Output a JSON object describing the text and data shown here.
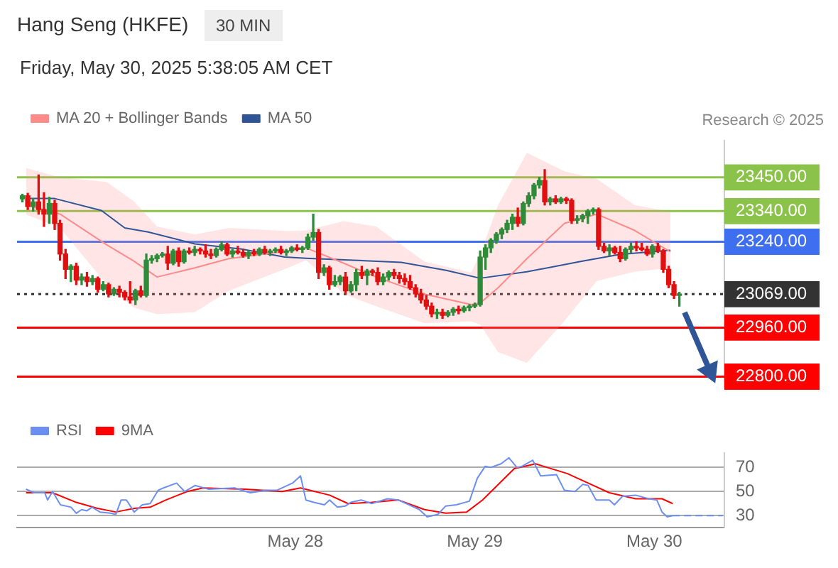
{
  "chart_data": [
    {
      "type": "candlestick",
      "title": "Hang Seng (HKFE)",
      "subtitle": "Friday, May 30, 2025 5:38:05 AM CET",
      "annotations": [
        "30 MIN",
        "Research © 2025"
      ],
      "x": [
        "2025-05-26T11:31",
        "2025-05-26T12:14",
        "2025-05-26T12:57",
        "2025-05-26T13:41",
        "2025-05-26T14:24",
        "2025-05-26T15:07",
        "2025-05-26T15:50",
        "2025-05-26T16:33",
        "2025-05-26T17:17",
        "2025-05-26T18:00",
        "2025-05-26T18:43",
        "2025-05-26T19:26",
        "2025-05-26T20:09",
        "2025-05-26T20:53",
        "2025-05-26T21:36",
        "2025-05-26T22:19",
        "2025-05-26T23:02",
        "2025-05-26T23:45",
        "2025-05-27T00:29",
        "2025-05-27T01:12",
        "2025-05-27T01:55",
        "2025-05-27T02:38",
        "2025-05-27T03:21",
        "2025-05-27T04:05",
        "2025-05-27T04:48",
        "2025-05-27T05:31",
        "2025-05-27T06:14",
        "2025-05-27T06:57",
        "2025-05-27T07:41",
        "2025-05-27T08:24",
        "2025-05-27T09:07",
        "2025-05-27T09:50",
        "2025-05-27T10:33",
        "2025-05-27T11:17",
        "2025-05-27T12:00",
        "2025-05-27T12:43",
        "2025-05-27T13:26",
        "2025-05-27T14:09",
        "2025-05-27T14:53",
        "2025-05-27T15:36",
        "2025-05-27T16:19",
        "2025-05-27T17:02",
        "2025-05-27T17:45",
        "2025-05-27T18:29",
        "2025-05-27T19:12",
        "2025-05-27T19:55",
        "2025-05-27T20:38",
        "2025-05-27T21:21",
        "2025-05-27T22:05",
        "2025-05-27T22:48",
        "2025-05-27T23:31",
        "2025-05-28T00:14",
        "2025-05-28T00:57",
        "2025-05-28T01:41",
        "2025-05-28T02:24",
        "2025-05-28T03:07",
        "2025-05-28T03:50",
        "2025-05-28T04:33",
        "2025-05-28T05:17",
        "2025-05-28T06:00",
        "2025-05-28T06:43",
        "2025-05-28T07:26",
        "2025-05-28T08:09",
        "2025-05-28T08:53",
        "2025-05-28T09:36",
        "2025-05-28T10:19",
        "2025-05-28T11:02",
        "2025-05-28T11:45",
        "2025-05-28T12:29",
        "2025-05-28T13:12",
        "2025-05-28T13:55",
        "2025-05-28T14:38",
        "2025-05-28T15:21",
        "2025-05-28T16:05",
        "2025-05-28T16:48",
        "2025-05-28T17:31",
        "2025-05-28T18:14",
        "2025-05-28T18:57",
        "2025-05-28T19:41",
        "2025-05-28T20:24",
        "2025-05-28T21:07",
        "2025-05-28T21:50",
        "2025-05-28T22:33",
        "2025-05-28T23:17",
        "2025-05-29T00:00",
        "2025-05-29T00:43",
        "2025-05-29T01:26",
        "2025-05-29T02:09",
        "2025-05-29T02:53",
        "2025-05-29T03:36",
        "2025-05-29T04:19",
        "2025-05-29T05:02",
        "2025-05-29T05:45",
        "2025-05-29T06:29",
        "2025-05-29T07:12",
        "2025-05-29T07:55",
        "2025-05-29T08:38",
        "2025-05-29T09:21",
        "2025-05-29T10:05",
        "2025-05-29T10:48",
        "2025-05-29T11:31",
        "2025-05-29T12:14",
        "2025-05-29T12:57",
        "2025-05-29T13:41",
        "2025-05-29T14:24",
        "2025-05-29T15:07",
        "2025-05-29T15:50",
        "2025-05-29T16:33",
        "2025-05-29T17:17",
        "2025-05-29T18:00",
        "2025-05-29T18:43",
        "2025-05-29T19:26",
        "2025-05-29T20:09",
        "2025-05-29T20:53",
        "2025-05-29T21:36",
        "2025-05-29T22:19",
        "2025-05-29T23:02",
        "2025-05-29T23:45",
        "2025-05-30T00:29",
        "2025-05-30T01:12",
        "2025-05-30T01:55",
        "2025-05-30T02:38",
        "2025-05-30T03:21"
      ],
      "ohlc": [
        [
          23380,
          23395,
          23370,
          23390
        ],
        [
          23390,
          23398,
          23345,
          23355
        ],
        [
          23355,
          23380,
          23340,
          23370
        ],
        [
          23370,
          23458,
          23330,
          23345
        ],
        [
          23345,
          23400,
          23290,
          23330
        ],
        [
          23330,
          23385,
          23300,
          23365
        ],
        [
          23365,
          23375,
          23280,
          23300
        ],
        [
          23300,
          23310,
          23180,
          23200
        ],
        [
          23200,
          23215,
          23120,
          23150
        ],
        [
          23150,
          23165,
          23110,
          23160
        ],
        [
          23160,
          23170,
          23100,
          23115
        ],
        [
          23115,
          23135,
          23100,
          23125
        ],
        [
          23125,
          23140,
          23095,
          23110
        ],
        [
          23110,
          23130,
          23100,
          23120
        ],
        [
          23120,
          23125,
          23075,
          23085
        ],
        [
          23085,
          23110,
          23080,
          23100
        ],
        [
          23100,
          23105,
          23060,
          23070
        ],
        [
          23070,
          23090,
          23065,
          23085
        ],
        [
          23085,
          23095,
          23060,
          23075
        ],
        [
          23075,
          23080,
          23050,
          23060
        ],
        [
          23060,
          23110,
          23040,
          23050
        ],
        [
          23050,
          23085,
          23035,
          23080
        ],
        [
          23080,
          23095,
          23060,
          23065
        ],
        [
          23065,
          23200,
          23060,
          23180
        ],
        [
          23180,
          23195,
          23170,
          23185
        ],
        [
          23185,
          23200,
          23175,
          23195
        ],
        [
          23195,
          23205,
          23190,
          23200
        ],
        [
          23200,
          23225,
          23150,
          23170
        ],
        [
          23170,
          23215,
          23165,
          23210
        ],
        [
          23210,
          23220,
          23160,
          23175
        ],
        [
          23175,
          23215,
          23170,
          23210
        ],
        [
          23210,
          23220,
          23200,
          23205
        ],
        [
          23205,
          23225,
          23195,
          23215
        ],
        [
          23215,
          23220,
          23200,
          23210
        ],
        [
          23210,
          23230,
          23190,
          23200
        ],
        [
          23200,
          23215,
          23185,
          23195
        ],
        [
          23195,
          23220,
          23190,
          23215
        ],
        [
          23215,
          23240,
          23210,
          23230
        ],
        [
          23230,
          23235,
          23195,
          23200
        ],
        [
          23200,
          23215,
          23190,
          23210
        ],
        [
          23210,
          23225,
          23200,
          23205
        ],
        [
          23205,
          23215,
          23190,
          23195
        ],
        [
          23195,
          23210,
          23185,
          23205
        ],
        [
          23205,
          23215,
          23195,
          23200
        ],
        [
          23200,
          23220,
          23195,
          23215
        ],
        [
          23215,
          23225,
          23200,
          23205
        ],
        [
          23205,
          23215,
          23195,
          23210
        ],
        [
          23210,
          23220,
          23205,
          23215
        ],
        [
          23215,
          23225,
          23200,
          23205
        ],
        [
          23205,
          23215,
          23195,
          23210
        ],
        [
          23210,
          23225,
          23205,
          23220
        ],
        [
          23220,
          23230,
          23210,
          23215
        ],
        [
          23215,
          23225,
          23205,
          23220
        ],
        [
          23220,
          23265,
          23215,
          23255
        ],
        [
          23255,
          23330,
          23245,
          23270
        ],
        [
          23270,
          23280,
          23120,
          23140
        ],
        [
          23140,
          23165,
          23130,
          23155
        ],
        [
          23155,
          23160,
          23085,
          23100
        ],
        [
          23100,
          23130,
          23095,
          23110
        ],
        [
          23110,
          23130,
          23100,
          23125
        ],
        [
          23125,
          23140,
          23070,
          23080
        ],
        [
          23080,
          23110,
          23075,
          23100
        ],
        [
          23100,
          23150,
          23080,
          23140
        ],
        [
          23140,
          23160,
          23120,
          23130
        ],
        [
          23130,
          23150,
          23100,
          23145
        ],
        [
          23145,
          23150,
          23130,
          23140
        ],
        [
          23140,
          23155,
          23100,
          23110
        ],
        [
          23110,
          23135,
          23100,
          23125
        ],
        [
          23125,
          23145,
          23115,
          23140
        ],
        [
          23140,
          23150,
          23120,
          23130
        ],
        [
          23130,
          23140,
          23105,
          23120
        ],
        [
          23120,
          23135,
          23100,
          23110
        ],
        [
          23110,
          23130,
          23085,
          23090
        ],
        [
          23090,
          23100,
          23060,
          23070
        ],
        [
          23070,
          23085,
          23040,
          23050
        ],
        [
          23050,
          23065,
          23020,
          23030
        ],
        [
          23030,
          23040,
          22995,
          23005
        ],
        [
          23005,
          23020,
          22990,
          23010
        ],
        [
          23010,
          23020,
          22990,
          23000
        ],
        [
          23000,
          23015,
          22995,
          23010
        ],
        [
          23010,
          23025,
          23000,
          23020
        ],
        [
          23020,
          23030,
          23005,
          23015
        ],
        [
          23015,
          23030,
          23010,
          23025
        ],
        [
          23025,
          23035,
          23015,
          23030
        ],
        [
          23030,
          23040,
          23025,
          23035
        ],
        [
          23035,
          23210,
          23030,
          23190
        ],
        [
          23190,
          23230,
          23150,
          23220
        ],
        [
          23220,
          23250,
          23205,
          23245
        ],
        [
          23245,
          23270,
          23235,
          23265
        ],
        [
          23265,
          23285,
          23250,
          23280
        ],
        [
          23280,
          23310,
          23270,
          23300
        ],
        [
          23300,
          23330,
          23280,
          23320
        ],
        [
          23320,
          23350,
          23290,
          23300
        ],
        [
          23300,
          23370,
          23295,
          23365
        ],
        [
          23365,
          23400,
          23355,
          23390
        ],
        [
          23390,
          23430,
          23380,
          23425
        ],
        [
          23425,
          23450,
          23415,
          23440
        ],
        [
          23440,
          23475,
          23360,
          23370
        ],
        [
          23370,
          23385,
          23360,
          23380
        ],
        [
          23380,
          23390,
          23365,
          23370
        ],
        [
          23370,
          23385,
          23365,
          23380
        ],
        [
          23380,
          23385,
          23365,
          23375
        ],
        [
          23375,
          23380,
          23300,
          23310
        ],
        [
          23310,
          23325,
          23300,
          23315
        ],
        [
          23315,
          23330,
          23305,
          23325
        ],
        [
          23325,
          23345,
          23300,
          23340
        ],
        [
          23340,
          23350,
          23330,
          23345
        ],
        [
          23345,
          23350,
          23215,
          23225
        ],
        [
          23225,
          23235,
          23205,
          23210
        ],
        [
          23210,
          23230,
          23195,
          23220
        ],
        [
          23220,
          23225,
          23200,
          23205
        ],
        [
          23205,
          23225,
          23175,
          23185
        ],
        [
          23185,
          23220,
          23180,
          23215
        ],
        [
          23215,
          23235,
          23205,
          23225
        ],
        [
          23225,
          23240,
          23210,
          23220
        ],
        [
          23220,
          23235,
          23210,
          23215
        ],
        [
          23215,
          23225,
          23195,
          23200
        ],
        [
          23200,
          23230,
          23190,
          23225
        ],
        [
          23225,
          23235,
          23205,
          23210
        ],
        [
          23210,
          23215,
          23140,
          23150
        ],
        [
          23150,
          23160,
          23090,
          23100
        ],
        [
          23100,
          23110,
          23055,
          23065
        ],
        [
          23065,
          23075,
          23030,
          23069
        ]
      ],
      "series": [
        {
          "type": "line",
          "name": "MA 20 + Bollinger Bands",
          "color": "#ff8a8a",
          "x": [
            "2025-05-26T12:00",
            "2025-05-26T16:34",
            "2025-05-26T22:48",
            "2025-05-27T02:24",
            "2025-05-27T05:31",
            "2025-05-27T10:34",
            "2025-05-27T15:07",
            "2025-05-27T23:02",
            "2025-05-28T01:26",
            "2025-05-28T06:29",
            "2025-05-28T10:48",
            "2025-05-28T17:17",
            "2025-05-28T23:31",
            "2025-05-29T00:43",
            "2025-05-29T03:07",
            "2025-05-29T06:58",
            "2025-05-29T12:00",
            "2025-05-29T16:19",
            "2025-05-29T21:22",
            "2025-05-30T02:10"
          ],
          "values": [
            23360,
            23330,
            23230,
            23177,
            23125,
            23155,
            23185,
            23210,
            23220,
            23170,
            23125,
            23069,
            23035,
            23040,
            23090,
            23185,
            23300,
            23330,
            23277,
            23207
          ],
          "upper": [
            23480,
            23450,
            23435,
            23372,
            23290,
            23264,
            23285,
            23275,
            23277,
            23307,
            23290,
            23175,
            23140,
            23200,
            23360,
            23530,
            23470,
            23445,
            23360,
            23337
          ],
          "lower": [
            23329,
            23285,
            23100,
            23025,
            23004,
            23010,
            23080,
            23155,
            23180,
            23069,
            23030,
            22974,
            22980,
            22970,
            22880,
            22845,
            22982,
            23112,
            23142,
            23155
          ]
        },
        {
          "type": "line",
          "name": "MA 50",
          "color": "#2f5597",
          "x": [
            "2025-05-26T12:00",
            "2025-05-26T15:50",
            "2025-05-26T22:05",
            "2025-05-27T01:12",
            "2025-05-27T04:19",
            "2025-05-27T10:34",
            "2025-05-27T16:48",
            "2025-05-27T22:34",
            "2025-05-28T01:26",
            "2025-05-28T14:10",
            "2025-05-28T20:10",
            "2025-05-29T00:43",
            "2025-05-29T06:58",
            "2025-05-29T14:24",
            "2025-05-29T19:26",
            "2025-05-30T02:10"
          ],
          "values": [
            23381,
            23381,
            23342,
            23285,
            23272,
            23233,
            23216,
            23190,
            23186,
            23173,
            23147,
            23121,
            23142,
            23177,
            23199,
            23212
          ]
        }
      ],
      "ref_lines": [
        {
          "axis": "y",
          "value": 23450,
          "color": "#8bc34a"
        },
        {
          "axis": "y",
          "value": 23340,
          "color": "#8bc34a"
        },
        {
          "axis": "y",
          "value": 23240,
          "color": "#3d6ff0"
        },
        {
          "axis": "y",
          "value": 23069,
          "color": "#333333",
          "line_style": "dotted"
        },
        {
          "axis": "y",
          "value": 22960,
          "color": "#ff0000"
        },
        {
          "axis": "y",
          "value": 22800,
          "color": "#ff0000"
        }
      ],
      "xlim": [
        "2025-05-26T10:48",
        "2025-05-30T09:22"
      ],
      "ylim": [
        22765,
        23570
      ],
      "yticks": [
        {
          "value": 22800,
          "label": "22800.00"
        },
        {
          "value": 22960,
          "label": "22960.00"
        },
        {
          "value": 23069,
          "label": "23069.00"
        },
        {
          "value": 23240,
          "label": "23240.00"
        },
        {
          "value": 23340,
          "label": "23340.00"
        },
        {
          "value": 23450,
          "label": "23450.00"
        }
      ],
      "legend": "top left",
      "marker": "none"
    },
    {
      "type": "line",
      "series": [
        {
          "name": "RSI",
          "color": "#6b8ef0",
          "x": [
            "2025-05-26T12:00",
            "2025-05-26T13:05",
            "2025-05-26T14:30",
            "2025-05-26T14:53",
            "2025-05-26T15:33",
            "2025-05-26T16:36",
            "2025-05-26T18:01",
            "2025-05-26T18:43",
            "2025-05-26T19:26",
            "2025-05-26T20:08",
            "2025-05-26T20:50",
            "2025-05-26T21:53",
            "2025-05-26T23:18",
            "2025-05-27T00:00",
            "2025-05-27T00:43",
            "2025-05-27T01:25",
            "2025-05-27T02:28",
            "2025-05-27T03:33",
            "2025-05-27T04:36",
            "2025-05-27T05:40",
            "2025-05-27T06:22",
            "2025-05-27T08:08",
            "2025-05-27T09:12",
            "2025-05-27T10:36",
            "2025-05-27T12:22",
            "2025-05-27T15:53",
            "2025-05-27T18:00",
            "2025-05-27T20:07",
            "2025-05-27T21:32",
            "2025-05-27T23:38",
            "2025-05-28T00:42",
            "2025-05-28T01:25",
            "2025-05-28T02:28",
            "2025-05-28T03:53",
            "2025-05-28T04:35",
            "2025-05-28T05:38",
            "2025-05-28T06:42",
            "2025-05-28T07:25",
            "2025-05-28T08:48",
            "2025-05-28T10:13",
            "2025-05-28T12:20",
            "2025-05-28T13:45",
            "2025-05-28T15:10",
            "2025-05-28T16:35",
            "2025-05-28T17:38",
            "2025-05-28T19:03",
            "2025-05-28T20:07",
            "2025-05-28T21:32",
            "2025-05-28T23:17",
            "2025-05-29T00:20",
            "2025-05-29T01:24",
            "2025-05-29T02:07",
            "2025-05-29T03:30",
            "2025-05-29T04:34",
            "2025-05-29T05:38",
            "2025-05-29T06:20",
            "2025-05-29T07:45",
            "2025-05-29T08:48",
            "2025-05-29T10:55",
            "2025-05-29T11:59",
            "2025-05-29T13:24",
            "2025-05-29T14:27",
            "2025-05-29T15:09",
            "2025-05-29T16:13",
            "2025-05-29T17:59",
            "2025-05-29T18:40",
            "2025-05-29T19:44",
            "2025-05-29T21:30",
            "2025-05-29T23:15",
            "2025-05-30T00:20",
            "2025-05-30T01:02",
            "2025-05-30T01:44",
            "2025-05-30T02:27"
          ],
          "values": [
            52,
            49,
            49,
            43,
            50,
            39,
            37,
            32,
            35,
            34,
            37,
            33,
            32,
            31,
            43,
            43,
            33,
            39,
            40,
            51,
            53,
            57,
            50,
            55,
            52,
            53,
            49,
            51,
            51,
            57,
            63,
            43,
            41,
            39,
            43,
            37,
            38,
            41,
            43,
            40,
            44,
            43,
            39,
            35,
            29,
            31,
            38,
            39,
            42,
            61,
            71,
            70,
            73,
            78,
            70,
            71,
            76,
            63,
            64,
            51,
            50,
            56,
            55,
            43,
            43,
            39,
            46,
            47,
            44,
            43,
            33,
            29,
            30
          ]
        },
        {
          "name": "9MA",
          "color": "#ff0000",
          "x": [
            "2025-05-26T12:00",
            "2025-05-26T15:33",
            "2025-05-26T18:43",
            "2025-05-26T21:33",
            "2025-05-27T00:00",
            "2025-05-27T02:28",
            "2025-05-27T04:36",
            "2025-05-27T06:43",
            "2025-05-27T09:32",
            "2025-05-27T11:40",
            "2025-05-27T17:18",
            "2025-05-27T22:15",
            "2025-05-28T00:42",
            "2025-05-28T04:35",
            "2025-05-28T07:03",
            "2025-05-28T10:13",
            "2025-05-28T13:45",
            "2025-05-28T17:17",
            "2025-05-28T20:07",
            "2025-05-28T22:55",
            "2025-05-29T01:02",
            "2025-05-29T05:17",
            "2025-05-29T08:07",
            "2025-05-29T12:20",
            "2025-05-29T15:09",
            "2025-05-29T17:59",
            "2025-05-29T21:30",
            "2025-05-30T01:02",
            "2025-05-30T02:27"
          ],
          "values": [
            49,
            49,
            41,
            36,
            33,
            36,
            37,
            43,
            50,
            53,
            52,
            50,
            53,
            47,
            40,
            41,
            43,
            35,
            32,
            33,
            43,
            69,
            73,
            65,
            57,
            49,
            44,
            44,
            40
          ]
        },
        {
          "color": "#6b8ef0",
          "line_style": "dashed",
          "x": [
            "2025-05-30T02:27",
            "2025-05-30T09:09"
          ],
          "values": [
            30,
            30
          ]
        }
      ],
      "xlim": [
        "2025-05-26T10:48",
        "2025-05-30T09:22"
      ],
      "xticks": [
        {
          "value": "2025-05-28",
          "label": "May 28"
        },
        {
          "value": "2025-05-29",
          "label": "May 29"
        },
        {
          "value": "2025-05-30",
          "label": "May 30"
        }
      ],
      "ylim": [
        20,
        82
      ],
      "yticks": [
        30,
        50,
        70
      ],
      "grid": "y",
      "legend": "top left",
      "marker": "none"
    }
  ]
}
